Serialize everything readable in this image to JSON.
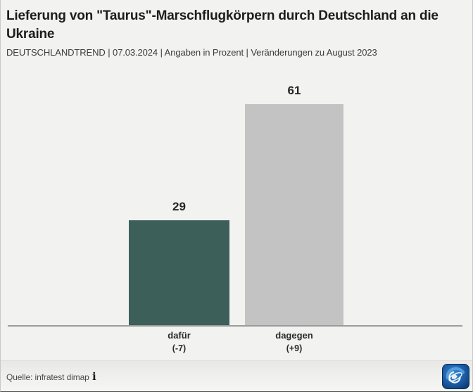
{
  "header": {
    "title": "Lieferung von \"Taurus\"-Marschflugkörpern durch Deutschland an die Ukraine",
    "subtitle": "DEUTSCHLANDTREND | 07.03.2024 | Angaben in Prozent | Veränderungen zu August 2023"
  },
  "chart_data": {
    "type": "bar",
    "title": "Lieferung von \"Taurus\"-Marschflugkörpern durch Deutschland an die Ukraine",
    "subtitle": "DEUTSCHLANDTREND | 07.03.2024 | Angaben in Prozent | Veränderungen zu August 2023",
    "categories": [
      "dafür",
      "dagegen"
    ],
    "values": [
      29,
      61
    ],
    "changes": [
      "(-7)",
      "(+9)"
    ],
    "bar_colors": [
      "#3d5f5a",
      "#c3c3c3"
    ],
    "ylabel": "Prozent",
    "ylim": [
      0,
      70
    ],
    "grid": false,
    "legend": false,
    "value_labels": true
  },
  "footer": {
    "source": "Quelle: infratest dimap",
    "info_icon": "i"
  },
  "colors": {
    "background": "#f2f2f1",
    "baseline": "#9b9b99",
    "bar_dafuer": "#3d5f5a",
    "bar_dagegen": "#c3c3c3",
    "logo_blue_dark": "#0d3a6e",
    "logo_blue_light": "#3b8fd6"
  }
}
